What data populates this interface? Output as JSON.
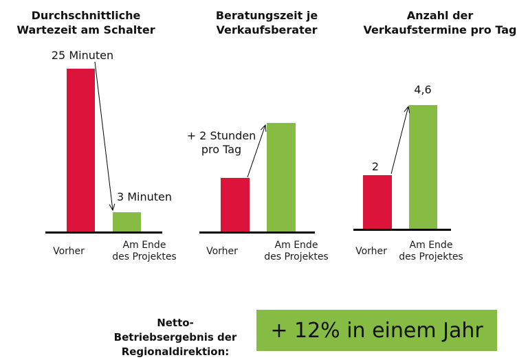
{
  "colors": {
    "before": "#dc143c",
    "after": "#86bb44",
    "baseline": "#000000"
  },
  "chart_data": [
    {
      "type": "bar",
      "title": "Durchschnittliche\nWartezeit am Schalter",
      "categories": [
        "Vorher",
        "Am Ende\ndes Projektes"
      ],
      "values": [
        25,
        3
      ],
      "value_labels": [
        "25 Minuten",
        "3 Minuten"
      ],
      "ylim": [
        0,
        30
      ]
    },
    {
      "type": "bar",
      "title": "Beratungszeit je\nVerkaufsberater",
      "categories": [
        "Vorher",
        "Am Ende\ndes Projektes"
      ],
      "values": [
        null,
        null
      ],
      "annotation": "+ 2 Stunden\npro Tag"
    },
    {
      "type": "bar",
      "title": "Anzahl der\nVerkaufstermine pro Tag",
      "categories": [
        "Vorher",
        "Am Ende\ndes Projektes"
      ],
      "values": [
        2,
        4.6
      ],
      "value_labels": [
        "2",
        "4,6"
      ],
      "ylim": [
        0,
        5.5
      ]
    }
  ],
  "result": {
    "label": "Netto-\nBetriebsergebnis der\nRegionaldirektion:",
    "value": "+ 12% in einem Jahr"
  }
}
